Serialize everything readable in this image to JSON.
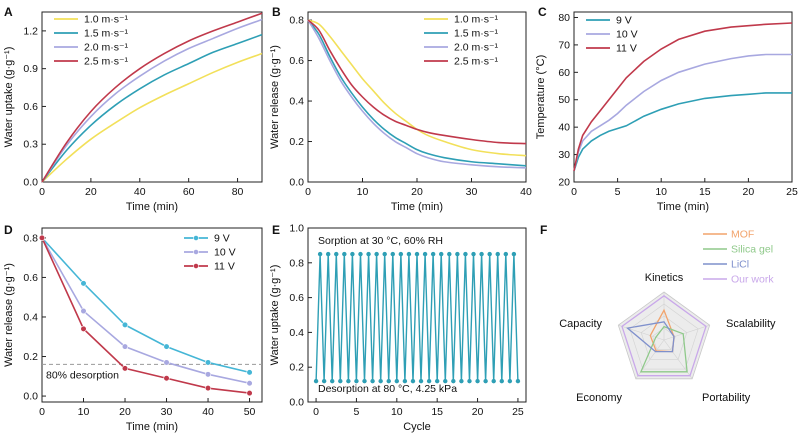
{
  "chart_data": [
    {
      "panel": "A",
      "type": "line",
      "xlabel": "Time (min)",
      "ylabel": "Water uptake (g·g⁻¹)",
      "xlim": [
        0,
        90
      ],
      "ylim": [
        0,
        1.35
      ],
      "xticks": [
        "0",
        "20",
        "40",
        "60",
        "80"
      ],
      "yticks": [
        "0.0",
        "0.3",
        "0.6",
        "0.9",
        "1.2"
      ],
      "legend_position": "top-left",
      "x": [
        0,
        10,
        20,
        30,
        40,
        50,
        60,
        70,
        80,
        90
      ],
      "series": [
        {
          "name": "1.0 m·s⁻¹",
          "color": "#f2e05a",
          "values": [
            0,
            0.18,
            0.34,
            0.47,
            0.59,
            0.69,
            0.78,
            0.87,
            0.95,
            1.02
          ]
        },
        {
          "name": "1.5 m·s⁻¹",
          "color": "#2e9fb5",
          "values": [
            0,
            0.25,
            0.45,
            0.61,
            0.74,
            0.85,
            0.94,
            1.03,
            1.1,
            1.17
          ]
        },
        {
          "name": "2.0 m·s⁻¹",
          "color": "#a8a8e0",
          "values": [
            0,
            0.29,
            0.52,
            0.7,
            0.84,
            0.96,
            1.06,
            1.14,
            1.22,
            1.29
          ]
        },
        {
          "name": "2.5 m·s⁻¹",
          "color": "#c0394b",
          "values": [
            0,
            0.31,
            0.56,
            0.75,
            0.9,
            1.02,
            1.12,
            1.2,
            1.27,
            1.34
          ]
        }
      ]
    },
    {
      "panel": "B",
      "type": "line",
      "xlabel": "Time (min)",
      "ylabel": "Water release (g·g⁻¹)",
      "xlim": [
        0,
        40
      ],
      "ylim": [
        0,
        0.84
      ],
      "xticks": [
        "0",
        "10",
        "20",
        "30",
        "40"
      ],
      "yticks": [
        "0.0",
        "0.2",
        "0.4",
        "0.6",
        "0.8"
      ],
      "legend_position": "top-right",
      "x": [
        0,
        2,
        4,
        6,
        8,
        10,
        12,
        14,
        16,
        18,
        20,
        22,
        25,
        30,
        35,
        40
      ],
      "series": [
        {
          "name": "1.0 m·s⁻¹",
          "color": "#f2e05a",
          "values": [
            0.8,
            0.78,
            0.72,
            0.65,
            0.58,
            0.51,
            0.45,
            0.39,
            0.34,
            0.3,
            0.26,
            0.23,
            0.2,
            0.16,
            0.14,
            0.13
          ]
        },
        {
          "name": "1.5 m·s⁻¹",
          "color": "#2e9fb5",
          "values": [
            0.8,
            0.73,
            0.62,
            0.52,
            0.44,
            0.37,
            0.31,
            0.26,
            0.22,
            0.19,
            0.16,
            0.14,
            0.12,
            0.1,
            0.09,
            0.08
          ]
        },
        {
          "name": "2.0 m·s⁻¹",
          "color": "#a8a8e0",
          "values": [
            0.8,
            0.71,
            0.6,
            0.5,
            0.42,
            0.35,
            0.29,
            0.24,
            0.2,
            0.17,
            0.14,
            0.12,
            0.1,
            0.085,
            0.075,
            0.07
          ]
        },
        {
          "name": "2.5 m·s⁻¹",
          "color": "#c0394b",
          "values": [
            0.8,
            0.75,
            0.65,
            0.56,
            0.48,
            0.42,
            0.37,
            0.33,
            0.3,
            0.28,
            0.26,
            0.245,
            0.23,
            0.21,
            0.195,
            0.19
          ]
        }
      ]
    },
    {
      "panel": "C",
      "type": "line",
      "xlabel": "Time (min)",
      "ylabel": "Temperature (°C)",
      "xlim": [
        0,
        25
      ],
      "ylim": [
        20,
        82
      ],
      "xticks": [
        "0",
        "5",
        "10",
        "15",
        "20",
        "25"
      ],
      "yticks": [
        "20",
        "30",
        "40",
        "50",
        "60",
        "70",
        "80"
      ],
      "legend_position": "top-left",
      "x": [
        0,
        0.5,
        1,
        2,
        3,
        4,
        5,
        6,
        8,
        10,
        12,
        15,
        18,
        20,
        22,
        25
      ],
      "series": [
        {
          "name": "9 V",
          "color": "#2e9fb5",
          "values": [
            24,
            29,
            32,
            35,
            37,
            38.5,
            39.5,
            40.5,
            44,
            46.5,
            48.5,
            50.5,
            51.5,
            52,
            52.5,
            52.5
          ]
        },
        {
          "name": "10 V",
          "color": "#a8a8e0",
          "values": [
            24,
            31,
            35,
            38.5,
            40.5,
            42.5,
            45,
            48,
            53,
            57,
            60,
            63,
            65,
            66,
            66.5,
            66.5
          ]
        },
        {
          "name": "11 V",
          "color": "#c0394b",
          "values": [
            24,
            32,
            37,
            42,
            46,
            50,
            54,
            58,
            64,
            68.5,
            72,
            75,
            76.5,
            77,
            77.5,
            78
          ]
        }
      ]
    },
    {
      "panel": "D",
      "type": "line",
      "xlabel": "Time (min)",
      "ylabel": "Water release (g·g⁻¹)",
      "xlim": [
        0,
        53
      ],
      "ylim": [
        -0.03,
        0.85
      ],
      "xticks": [
        "0",
        "10",
        "20",
        "30",
        "40",
        "50"
      ],
      "yticks": [
        "0.0",
        "0.2",
        "0.4",
        "0.6",
        "0.8"
      ],
      "legend_position": "top-right",
      "reference_line": {
        "y": 0.16,
        "label": "80% desorption"
      },
      "x": [
        0,
        10,
        20,
        30,
        40,
        50
      ],
      "series": [
        {
          "name": "9 V",
          "color": "#45b6d6",
          "values": [
            0.8,
            0.57,
            0.36,
            0.25,
            0.17,
            0.12
          ]
        },
        {
          "name": "10 V",
          "color": "#a8a8e0",
          "values": [
            0.8,
            0.43,
            0.25,
            0.17,
            0.11,
            0.065
          ]
        },
        {
          "name": "11 V",
          "color": "#c0394b",
          "values": [
            0.8,
            0.34,
            0.14,
            0.09,
            0.04,
            0.015
          ]
        }
      ]
    },
    {
      "panel": "E",
      "type": "line",
      "xlabel": "Cycle",
      "ylabel": "Water uptake (g·g⁻¹)",
      "xlim": [
        -1,
        26
      ],
      "ylim": [
        0,
        1.0
      ],
      "xticks": [
        "0",
        "5",
        "10",
        "15",
        "20",
        "25"
      ],
      "yticks": [
        "0.0",
        "0.2",
        "0.4",
        "0.6",
        "0.8",
        "1.0"
      ],
      "annotations": [
        "Sorption at 30 °C, 60% RH",
        "Desorption at 80 °C, 4.25 kPa"
      ],
      "cycles": 25,
      "high_value": 0.85,
      "low_value": 0.12,
      "color": "#2e9fb5"
    },
    {
      "panel": "F",
      "type": "radar",
      "axes": [
        "Kinetics",
        "Scalability",
        "Portability",
        "Economy",
        "Capacity"
      ],
      "series": [
        {
          "name": "MOF",
          "color": "#f2a36b",
          "values": [
            0.62,
            0.22,
            0.3,
            0.28,
            0.3
          ]
        },
        {
          "name": "Silica gel",
          "color": "#8fc98a",
          "values": [
            0.28,
            0.42,
            0.82,
            0.82,
            0.18
          ]
        },
        {
          "name": "LiCl",
          "color": "#7f90cc",
          "values": [
            0.38,
            0.22,
            0.3,
            0.3,
            0.8
          ]
        },
        {
          "name": "Our work",
          "color": "#c9a8ea",
          "values": [
            0.92,
            0.92,
            0.92,
            0.92,
            0.92
          ]
        }
      ]
    }
  ]
}
